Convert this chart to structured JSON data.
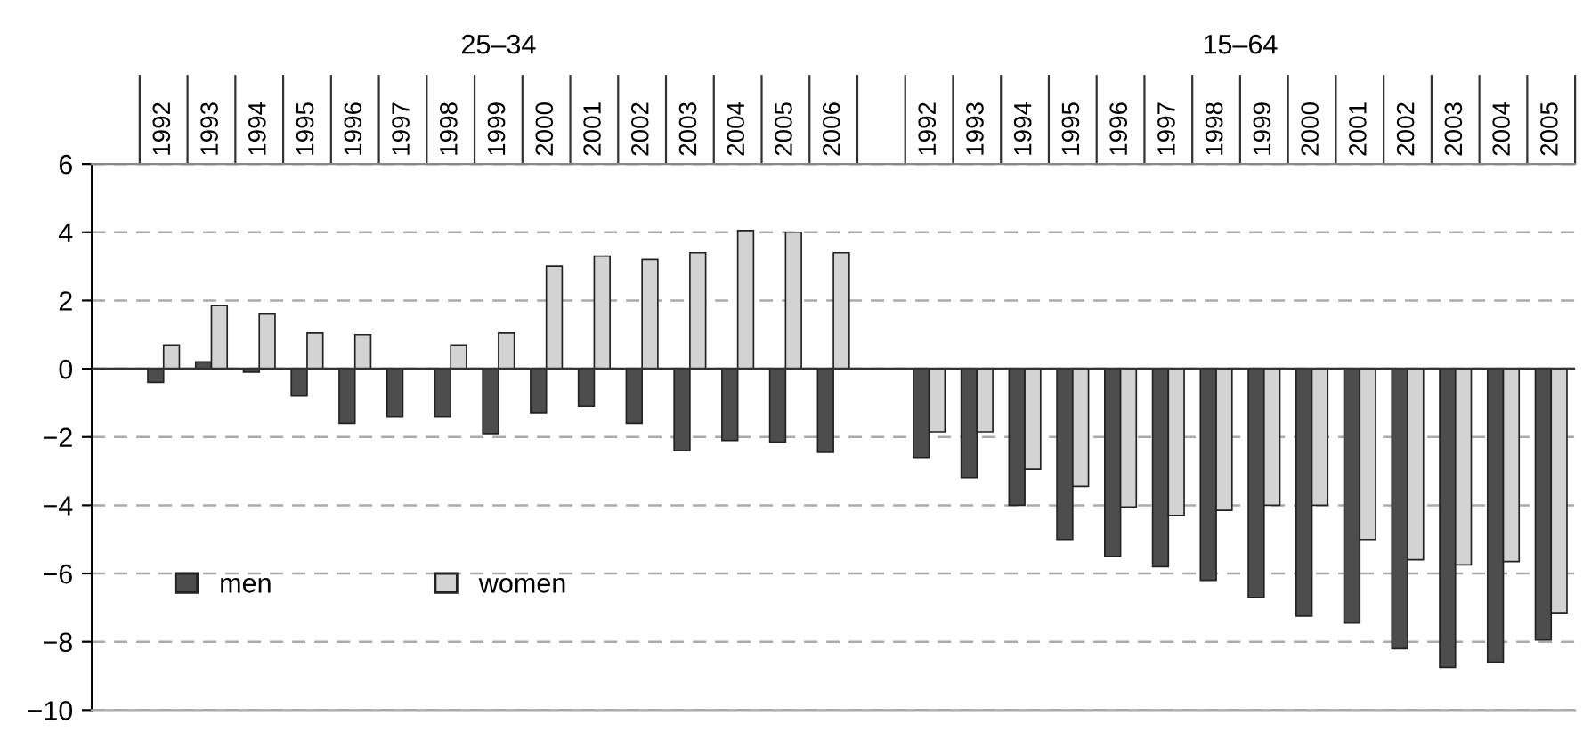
{
  "chart_data": {
    "type": "bar",
    "categories": [
      null,
      "1992",
      "1993",
      "1994",
      "1995",
      "1996",
      "1997",
      "1998",
      "1999",
      "2000",
      "2001",
      "2002",
      "2003",
      "2004",
      "2005",
      "2006",
      null,
      "1992",
      "1993",
      "1994",
      "1995",
      "1996",
      "1997",
      "1998",
      "1999",
      "2000",
      "2001",
      "2002",
      "2003",
      "2004",
      "2005"
    ],
    "series": [
      {
        "name": "men",
        "color": "#4d4d4d",
        "values": [
          null,
          -0.4,
          0.2,
          -0.1,
          -0.8,
          -1.6,
          -1.4,
          -1.4,
          -1.9,
          -1.3,
          -1.1,
          -1.6,
          -2.4,
          -2.1,
          -2.15,
          -2.45,
          null,
          -2.6,
          -3.2,
          -4.0,
          -5.0,
          -5.5,
          -5.8,
          -6.2,
          -6.7,
          -7.25,
          -7.45,
          -8.2,
          -8.75,
          -8.6,
          -7.95
        ]
      },
      {
        "name": "women",
        "color": "#d3d3d3",
        "values": [
          null,
          0.7,
          1.85,
          1.6,
          1.05,
          1.0,
          null,
          0.7,
          1.05,
          3.0,
          3.3,
          3.2,
          3.4,
          4.05,
          4.0,
          3.4,
          null,
          -1.85,
          -1.85,
          -2.95,
          -3.45,
          -4.05,
          -4.3,
          -4.15,
          -4.0,
          -4.0,
          -5.0,
          -5.6,
          -5.75,
          -5.65,
          -7.15
        ]
      }
    ],
    "annotations": [
      "25–34",
      "15–64"
    ],
    "ylim": [
      -10,
      6
    ],
    "yticks": [
      {
        "value": -10,
        "label": "−10"
      },
      {
        "value": -8,
        "label": "−8"
      },
      {
        "value": -6,
        "label": "−6"
      },
      {
        "value": -4,
        "label": "−4"
      },
      {
        "value": -2,
        "label": "−2"
      },
      0,
      2,
      4,
      6
    ],
    "grid": "y",
    "legend": "bottom left"
  }
}
